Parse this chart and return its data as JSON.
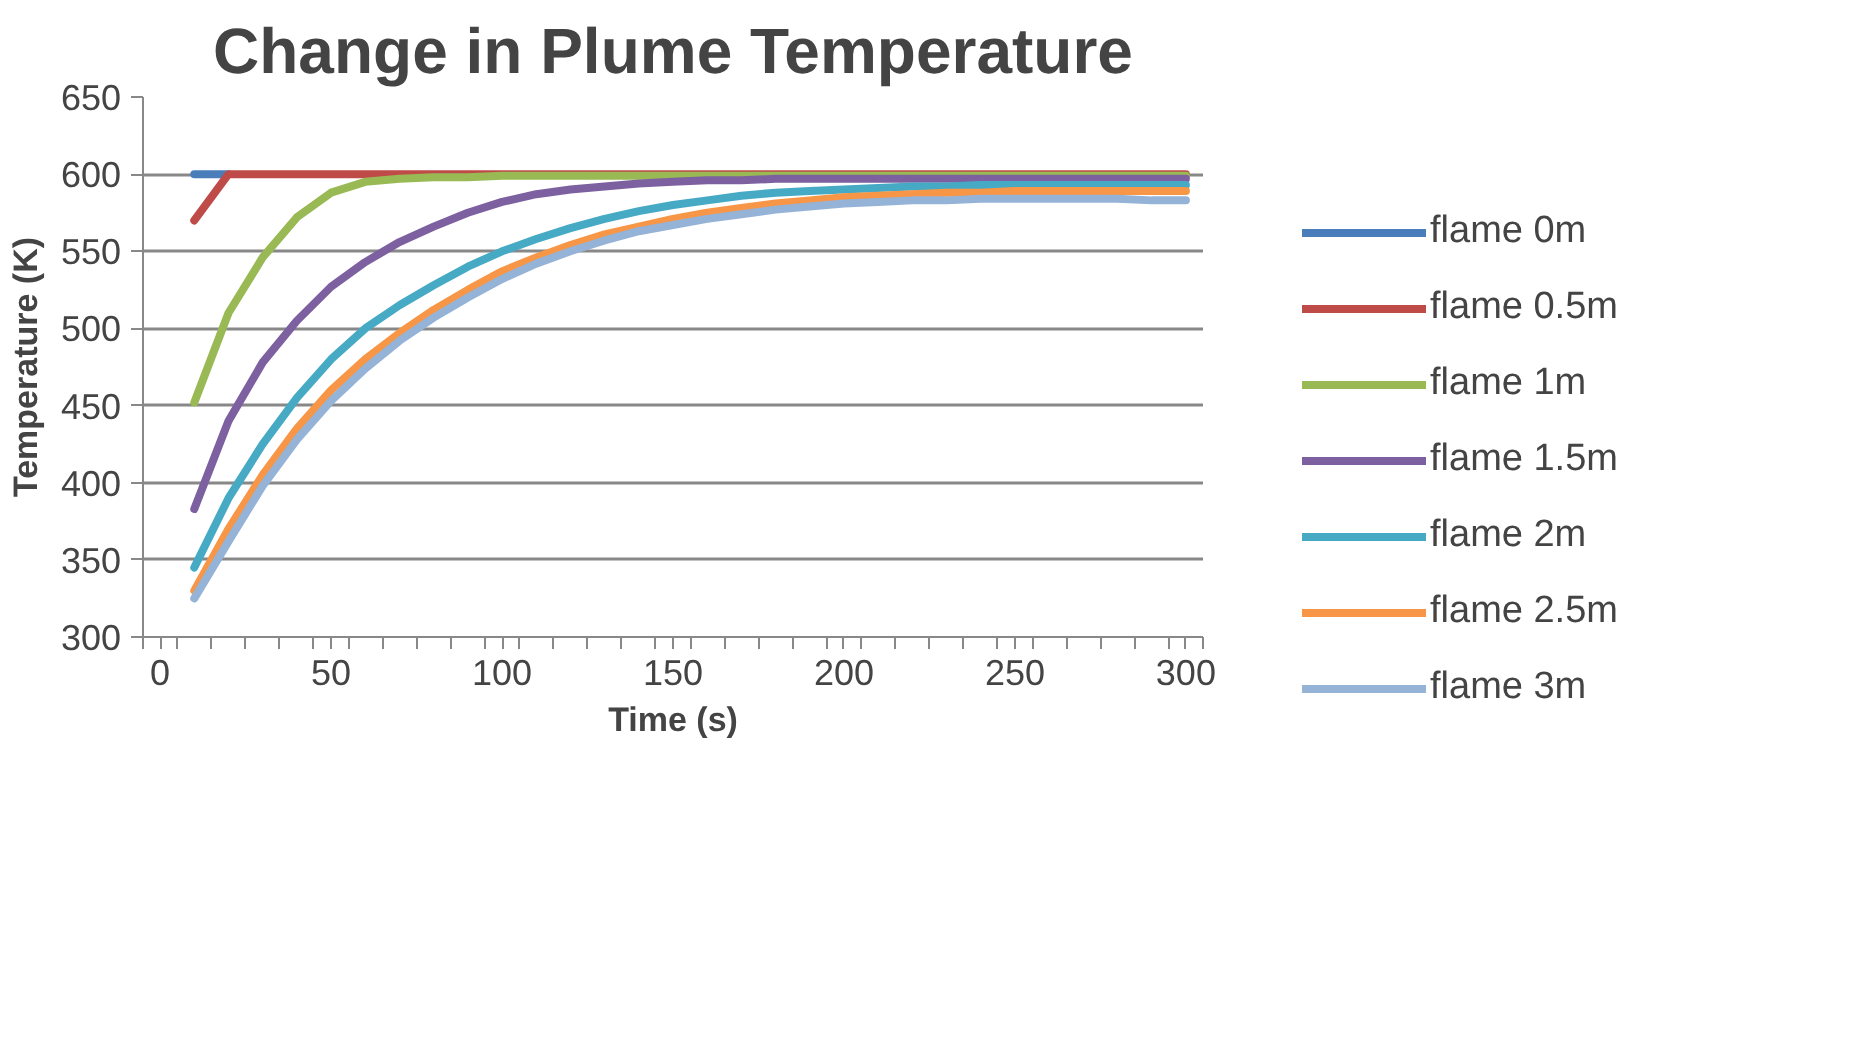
{
  "chart_data": {
    "type": "line",
    "title": "Change in Plume Temperature",
    "xlabel": "Time (s)",
    "ylabel": "Temperature (K)",
    "x": [
      10,
      20,
      30,
      40,
      50,
      60,
      70,
      80,
      90,
      100,
      110,
      120,
      130,
      140,
      150,
      160,
      170,
      180,
      190,
      200,
      210,
      220,
      230,
      240,
      250,
      260,
      270,
      280,
      290,
      300
    ],
    "series": [
      {
        "name": "flame 0m",
        "color": "#4a7ebb",
        "values": [
          600,
          600,
          null,
          null,
          null,
          null,
          null,
          null,
          null,
          null,
          null,
          null,
          null,
          null,
          null,
          null,
          null,
          null,
          null,
          null,
          null,
          null,
          null,
          null,
          null,
          null,
          null,
          null,
          null,
          null
        ]
      },
      {
        "name": "flame 0.5m",
        "color": "#be4b48",
        "values": [
          570,
          600,
          600,
          600,
          600,
          600,
          600,
          600,
          600,
          600,
          600,
          600,
          600,
          600,
          600,
          600,
          600,
          600,
          600,
          600,
          600,
          600,
          600,
          600,
          600,
          600,
          600,
          600,
          600,
          600
        ]
      },
      {
        "name": "flame 1m",
        "color": "#98b954",
        "values": [
          452,
          510,
          546,
          572,
          588,
          595,
          597,
          598,
          598,
          599,
          599,
          599,
          599,
          599,
          599,
          599,
          599,
          599,
          599,
          599,
          599,
          599,
          599,
          599,
          599,
          599,
          599,
          599,
          599,
          599
        ]
      },
      {
        "name": "flame 1.5m",
        "color": "#7d60a0",
        "values": [
          383,
          440,
          478,
          505,
          527,
          543,
          556,
          566,
          575,
          582,
          587,
          590,
          592,
          594,
          595,
          596,
          596,
          597,
          597,
          597,
          597,
          597,
          597,
          597,
          597,
          597,
          597,
          597,
          597,
          597
        ]
      },
      {
        "name": "flame 2m",
        "color": "#46aac5",
        "values": [
          345,
          390,
          425,
          455,
          480,
          500,
          515,
          528,
          540,
          550,
          558,
          565,
          571,
          576,
          580,
          583,
          586,
          588,
          589,
          590,
          591,
          592,
          592,
          593,
          593,
          593,
          593,
          593,
          593,
          593
        ]
      },
      {
        "name": "flame 2.5m",
        "color": "#f79646",
        "values": [
          330,
          370,
          405,
          435,
          460,
          480,
          497,
          512,
          525,
          537,
          546,
          554,
          561,
          566,
          571,
          575,
          578,
          581,
          583,
          585,
          586,
          587,
          588,
          588,
          589,
          589,
          589,
          589,
          589,
          589
        ]
      },
      {
        "name": "flame 3m",
        "color": "#95b3d7",
        "values": [
          325,
          362,
          398,
          428,
          453,
          474,
          492,
          507,
          520,
          532,
          542,
          550,
          557,
          563,
          567,
          571,
          574,
          577,
          579,
          581,
          582,
          583,
          583,
          584,
          584,
          584,
          584,
          584,
          583,
          583
        ]
      }
    ],
    "xlim": [
      -5,
      305
    ],
    "xticks": [
      {
        "value": -5,
        "label": null
      },
      {
        "value": 0,
        "label": "0"
      },
      {
        "value": 5,
        "label": null
      },
      {
        "value": 15,
        "label": null
      },
      {
        "value": 25,
        "label": null
      },
      {
        "value": 35,
        "label": null
      },
      {
        "value": 45,
        "label": null
      },
      {
        "value": 50,
        "label": "50"
      },
      {
        "value": 55,
        "label": null
      },
      {
        "value": 65,
        "label": null
      },
      {
        "value": 75,
        "label": null
      },
      {
        "value": 85,
        "label": null
      },
      {
        "value": 95,
        "label": null
      },
      {
        "value": 100,
        "label": "100"
      },
      {
        "value": 105,
        "label": null
      },
      {
        "value": 115,
        "label": null
      },
      {
        "value": 125,
        "label": null
      },
      {
        "value": 135,
        "label": null
      },
      {
        "value": 145,
        "label": null
      },
      {
        "value": 150,
        "label": "150"
      },
      {
        "value": 155,
        "label": null
      },
      {
        "value": 165,
        "label": null
      },
      {
        "value": 175,
        "label": null
      },
      {
        "value": 185,
        "label": null
      },
      {
        "value": 195,
        "label": null
      },
      {
        "value": 200,
        "label": "200"
      },
      {
        "value": 205,
        "label": null
      },
      {
        "value": 215,
        "label": null
      },
      {
        "value": 225,
        "label": null
      },
      {
        "value": 235,
        "label": null
      },
      {
        "value": 245,
        "label": null
      },
      {
        "value": 250,
        "label": "250"
      },
      {
        "value": 255,
        "label": null
      },
      {
        "value": 265,
        "label": null
      },
      {
        "value": 275,
        "label": null
      },
      {
        "value": 285,
        "label": null
      },
      {
        "value": 295,
        "label": null
      },
      {
        "value": 300,
        "label": "300"
      },
      {
        "value": 305,
        "label": null
      }
    ],
    "ylim": [
      300,
      650
    ],
    "yticks": [
      300,
      350,
      400,
      450,
      500,
      550,
      600,
      650
    ],
    "grid": "y",
    "legend": "right",
    "marker": "none",
    "line_style": "solid"
  }
}
